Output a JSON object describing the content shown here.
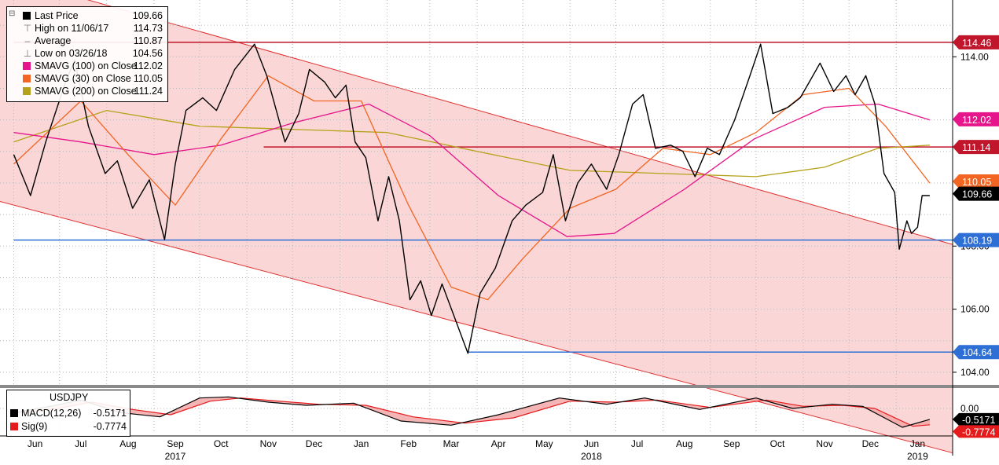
{
  "chart_data": {
    "type": "line",
    "instrument": "USDJPY",
    "price_axis": {
      "ticks": [
        104.0,
        106.0,
        108.0,
        114.0
      ],
      "ylim": [
        103.6,
        115.8
      ]
    },
    "macd_axis": {
      "ticks": [
        "0.00"
      ]
    },
    "x_months": [
      {
        "label": "Jun",
        "date": "2017-06-15"
      },
      {
        "label": "Jul",
        "date": "2017-07-15"
      },
      {
        "label": "Aug",
        "date": "2017-08-15"
      },
      {
        "label": "Sep",
        "date": "2017-09-15"
      },
      {
        "label": "Oct",
        "date": "2017-10-15"
      },
      {
        "label": "Nov",
        "date": "2017-11-15"
      },
      {
        "label": "Dec",
        "date": "2017-12-15"
      },
      {
        "label": "Jan",
        "date": "2018-01-15"
      },
      {
        "label": "Feb",
        "date": "2018-02-15"
      },
      {
        "label": "Mar",
        "date": "2018-03-15"
      },
      {
        "label": "Apr",
        "date": "2018-04-15"
      },
      {
        "label": "May",
        "date": "2018-05-15"
      },
      {
        "label": "Jun",
        "date": "2018-06-15"
      },
      {
        "label": "Jul",
        "date": "2018-07-15"
      },
      {
        "label": "Aug",
        "date": "2018-08-15"
      },
      {
        "label": "Sep",
        "date": "2018-09-15"
      },
      {
        "label": "Oct",
        "date": "2018-10-15"
      },
      {
        "label": "Nov",
        "date": "2018-11-15"
      },
      {
        "label": "Dec",
        "date": "2018-12-15"
      },
      {
        "label": "Jan",
        "date": "2019-01-15"
      }
    ],
    "x_years": [
      {
        "label": "2017",
        "date": "2017-09-15"
      },
      {
        "label": "2018",
        "date": "2018-06-15"
      },
      {
        "label": "2019",
        "date": "2019-01-15"
      }
    ],
    "legend": [
      {
        "label": "Last Price",
        "value": "109.66",
        "color": "#000000",
        "glyph": "square"
      },
      {
        "label": "High on 11/06/17",
        "value": "114.73",
        "glyph": "high"
      },
      {
        "label": "Average",
        "value": "110.87",
        "glyph": "avg"
      },
      {
        "label": "Low on 03/26/18",
        "value": "104.56",
        "glyph": "low"
      },
      {
        "label": "SMAVG (100)  on Close",
        "value": "112.02",
        "color": "#e6158c",
        "glyph": "square"
      },
      {
        "label": "SMAVG (30)  on Close",
        "value": "110.05",
        "color": "#f26522",
        "glyph": "square"
      },
      {
        "label": "SMAVG (200)  on Close",
        "value": "111.24",
        "color": "#b5a21a",
        "glyph": "square"
      }
    ],
    "macd_legend": {
      "title": "USDJPY",
      "rows": [
        {
          "label": "MACD(12,26)",
          "value": "-0.5171",
          "color": "#000000"
        },
        {
          "label": "Sig(9)",
          "value": "-0.7774",
          "color": "#e41a1c"
        }
      ]
    },
    "price_tags": [
      {
        "value": 114.46,
        "label": "114.46",
        "bg": "#c0152b",
        "fg": "#ffffff"
      },
      {
        "value": 112.02,
        "label": "112.02",
        "bg": "#e6158c",
        "fg": "#ffffff"
      },
      {
        "value": 111.14,
        "label": "111.14",
        "bg": "#c0152b",
        "fg": "#ffffff"
      },
      {
        "value": 110.05,
        "label": "110.05",
        "bg": "#f26522",
        "fg": "#ffffff"
      },
      {
        "value": 109.66,
        "label": "109.66",
        "bg": "#000000",
        "fg": "#ffffff"
      },
      {
        "value": 108.19,
        "label": "108.19",
        "bg": "#2e6fd6",
        "fg": "#ffffff"
      },
      {
        "value": 104.64,
        "label": "104.64",
        "bg": "#2e6fd6",
        "fg": "#ffffff"
      }
    ],
    "macd_tags": [
      {
        "label": "-0.5171",
        "bg": "#000000",
        "fg": "#ffffff"
      },
      {
        "label": "-0.7774",
        "bg": "#e41a1c",
        "fg": "#ffffff"
      }
    ],
    "horizontal_lines": [
      {
        "value": 114.46,
        "color": "#c0152b",
        "from": "2017-06-01"
      },
      {
        "value": 111.14,
        "color": "#c0152b",
        "from": "2017-11-12"
      },
      {
        "value": 108.19,
        "color": "#2e6fd6",
        "from": "2017-06-01"
      },
      {
        "value": 104.64,
        "color": "#2e6fd6",
        "from": "2018-03-26"
      }
    ],
    "channel": {
      "color": "#f8c8c8",
      "line_color": "#e03030",
      "upper": [
        {
          "x": "2017-07-20",
          "y": 115.8
        },
        {
          "x": "2019-02-07",
          "y": 108.05
        }
      ],
      "lower": [
        {
          "x": "2017-06-01",
          "y": 109.3
        },
        {
          "x": "2018-08-22",
          "y": 103.6
        }
      ]
    },
    "series": [
      {
        "name": "Last Price",
        "color": "#000000",
        "points": [
          [
            "2017-06-01",
            110.9
          ],
          [
            "2017-06-12",
            109.6
          ],
          [
            "2017-06-22",
            111.3
          ],
          [
            "2017-07-05",
            113.2
          ],
          [
            "2017-07-11",
            113.9
          ],
          [
            "2017-07-20",
            111.8
          ],
          [
            "2017-07-31",
            110.3
          ],
          [
            "2017-08-08",
            110.7
          ],
          [
            "2017-08-18",
            109.2
          ],
          [
            "2017-08-29",
            110.1
          ],
          [
            "2017-09-08",
            108.2
          ],
          [
            "2017-09-15",
            110.6
          ],
          [
            "2017-09-22",
            112.3
          ],
          [
            "2017-10-03",
            112.7
          ],
          [
            "2017-10-12",
            112.3
          ],
          [
            "2017-10-24",
            113.6
          ],
          [
            "2017-11-06",
            114.4
          ],
          [
            "2017-11-14",
            113.4
          ],
          [
            "2017-11-26",
            111.3
          ],
          [
            "2017-12-05",
            112.2
          ],
          [
            "2017-12-12",
            113.6
          ],
          [
            "2017-12-22",
            113.2
          ],
          [
            "2017-12-29",
            112.7
          ],
          [
            "2018-01-05",
            113.1
          ],
          [
            "2018-01-11",
            111.3
          ],
          [
            "2018-01-18",
            110.8
          ],
          [
            "2018-01-26",
            108.8
          ],
          [
            "2018-02-02",
            110.2
          ],
          [
            "2018-02-09",
            108.8
          ],
          [
            "2018-02-16",
            106.3
          ],
          [
            "2018-02-23",
            106.9
          ],
          [
            "2018-03-02",
            105.8
          ],
          [
            "2018-03-09",
            106.8
          ],
          [
            "2018-03-16",
            105.9
          ],
          [
            "2018-03-26",
            104.6
          ],
          [
            "2018-04-03",
            106.5
          ],
          [
            "2018-04-13",
            107.3
          ],
          [
            "2018-04-24",
            108.8
          ],
          [
            "2018-05-03",
            109.3
          ],
          [
            "2018-05-14",
            109.7
          ],
          [
            "2018-05-21",
            110.9
          ],
          [
            "2018-05-29",
            108.8
          ],
          [
            "2018-06-06",
            110.0
          ],
          [
            "2018-06-15",
            110.6
          ],
          [
            "2018-06-25",
            109.8
          ],
          [
            "2018-07-03",
            110.9
          ],
          [
            "2018-07-12",
            112.5
          ],
          [
            "2018-07-19",
            112.8
          ],
          [
            "2018-07-27",
            111.1
          ],
          [
            "2018-08-06",
            111.2
          ],
          [
            "2018-08-14",
            111.0
          ],
          [
            "2018-08-22",
            110.2
          ],
          [
            "2018-08-30",
            111.1
          ],
          [
            "2018-09-07",
            110.9
          ],
          [
            "2018-09-17",
            112.0
          ],
          [
            "2018-09-27",
            113.4
          ],
          [
            "2018-10-04",
            114.4
          ],
          [
            "2018-10-12",
            112.2
          ],
          [
            "2018-10-22",
            112.4
          ],
          [
            "2018-10-30",
            112.7
          ],
          [
            "2018-11-05",
            113.2
          ],
          [
            "2018-11-12",
            113.8
          ],
          [
            "2018-11-21",
            112.9
          ],
          [
            "2018-11-29",
            113.4
          ],
          [
            "2018-12-05",
            112.8
          ],
          [
            "2018-12-12",
            113.4
          ],
          [
            "2018-12-18",
            112.5
          ],
          [
            "2018-12-24",
            110.3
          ],
          [
            "2018-12-31",
            109.7
          ],
          [
            "2019-01-03",
            107.9
          ],
          [
            "2019-01-08",
            108.8
          ],
          [
            "2019-01-11",
            108.4
          ],
          [
            "2019-01-15",
            108.6
          ],
          [
            "2019-01-18",
            109.6
          ],
          [
            "2019-01-23",
            109.6
          ]
        ]
      },
      {
        "name": "SMAVG (100)  on Close",
        "color": "#e6158c",
        "points": [
          [
            "2017-06-01",
            111.6
          ],
          [
            "2017-07-15",
            111.3
          ],
          [
            "2017-09-01",
            110.9
          ],
          [
            "2017-10-15",
            111.2
          ],
          [
            "2017-12-01",
            111.9
          ],
          [
            "2018-01-20",
            112.5
          ],
          [
            "2018-03-01",
            111.5
          ],
          [
            "2018-04-15",
            109.6
          ],
          [
            "2018-05-30",
            108.3
          ],
          [
            "2018-06-30",
            108.4
          ],
          [
            "2018-08-15",
            109.8
          ],
          [
            "2018-09-30",
            111.4
          ],
          [
            "2018-11-15",
            112.4
          ],
          [
            "2018-12-20",
            112.5
          ],
          [
            "2019-01-23",
            112.0
          ]
        ]
      },
      {
        "name": "SMAVG (30)  on Close",
        "color": "#f26522",
        "points": [
          [
            "2017-06-01",
            110.6
          ],
          [
            "2017-07-15",
            112.6
          ],
          [
            "2017-08-15",
            110.9
          ],
          [
            "2017-09-15",
            109.3
          ],
          [
            "2017-10-15",
            111.4
          ],
          [
            "2017-11-15",
            113.4
          ],
          [
            "2017-12-15",
            112.6
          ],
          [
            "2018-01-15",
            112.6
          ],
          [
            "2018-02-15",
            109.3
          ],
          [
            "2018-03-15",
            106.7
          ],
          [
            "2018-04-08",
            106.3
          ],
          [
            "2018-05-01",
            107.6
          ],
          [
            "2018-06-01",
            109.2
          ],
          [
            "2018-07-01",
            109.8
          ],
          [
            "2018-08-01",
            111.1
          ],
          [
            "2018-09-01",
            110.9
          ],
          [
            "2018-10-01",
            111.6
          ],
          [
            "2018-11-01",
            112.8
          ],
          [
            "2018-12-01",
            113.0
          ],
          [
            "2018-12-25",
            111.8
          ],
          [
            "2019-01-23",
            110.0
          ]
        ]
      },
      {
        "name": "SMAVG (200)  on Close",
        "color": "#b5a21a",
        "points": [
          [
            "2017-06-01",
            111.3
          ],
          [
            "2017-08-01",
            112.3
          ],
          [
            "2017-10-01",
            111.8
          ],
          [
            "2017-12-01",
            111.7
          ],
          [
            "2018-02-01",
            111.6
          ],
          [
            "2018-04-01",
            111.0
          ],
          [
            "2018-06-01",
            110.4
          ],
          [
            "2018-08-01",
            110.3
          ],
          [
            "2018-10-01",
            110.2
          ],
          [
            "2018-11-15",
            110.5
          ],
          [
            "2018-12-20",
            111.1
          ],
          [
            "2019-01-23",
            111.2
          ]
        ]
      }
    ],
    "macd_series": [
      {
        "name": "MACD(12,26)",
        "color": "#000000",
        "points": [
          [
            "2017-06-01",
            -0.2
          ],
          [
            "2017-06-25",
            0.1
          ],
          [
            "2017-07-15",
            0.4
          ],
          [
            "2017-08-10",
            -0.2
          ],
          [
            "2017-09-05",
            -0.4
          ],
          [
            "2017-10-01",
            0.5
          ],
          [
            "2017-10-20",
            0.55
          ],
          [
            "2017-11-15",
            0.3
          ],
          [
            "2017-12-10",
            0.15
          ],
          [
            "2018-01-10",
            0.25
          ],
          [
            "2018-02-10",
            -0.6
          ],
          [
            "2018-03-15",
            -0.8
          ],
          [
            "2018-04-15",
            -0.3
          ],
          [
            "2018-05-25",
            0.5
          ],
          [
            "2018-06-25",
            0.2
          ],
          [
            "2018-07-20",
            0.5
          ],
          [
            "2018-08-25",
            -0.05
          ],
          [
            "2018-10-01",
            0.5
          ],
          [
            "2018-10-25",
            0.0
          ],
          [
            "2018-11-20",
            0.2
          ],
          [
            "2018-12-10",
            0.1
          ],
          [
            "2019-01-05",
            -0.9
          ],
          [
            "2019-01-23",
            -0.52
          ]
        ]
      },
      {
        "name": "Sig(9)",
        "color": "#e41a1c",
        "points": [
          [
            "2017-06-01",
            -0.25
          ],
          [
            "2017-06-30",
            0.0
          ],
          [
            "2017-07-22",
            0.3
          ],
          [
            "2017-08-18",
            -0.05
          ],
          [
            "2017-09-12",
            -0.3
          ],
          [
            "2017-10-08",
            0.35
          ],
          [
            "2017-10-28",
            0.5
          ],
          [
            "2017-11-22",
            0.35
          ],
          [
            "2017-12-18",
            0.2
          ],
          [
            "2018-01-18",
            0.15
          ],
          [
            "2018-02-18",
            -0.4
          ],
          [
            "2018-03-24",
            -0.7
          ],
          [
            "2018-04-25",
            -0.45
          ],
          [
            "2018-06-01",
            0.35
          ],
          [
            "2018-07-01",
            0.3
          ],
          [
            "2018-07-28",
            0.4
          ],
          [
            "2018-09-01",
            0.05
          ],
          [
            "2018-10-08",
            0.4
          ],
          [
            "2018-11-01",
            0.1
          ],
          [
            "2018-11-27",
            0.15
          ],
          [
            "2018-12-18",
            0.0
          ],
          [
            "2019-01-12",
            -0.85
          ],
          [
            "2019-01-23",
            -0.78
          ]
        ]
      }
    ],
    "macd_ylim": [
      -1.2,
      0.9
    ]
  }
}
